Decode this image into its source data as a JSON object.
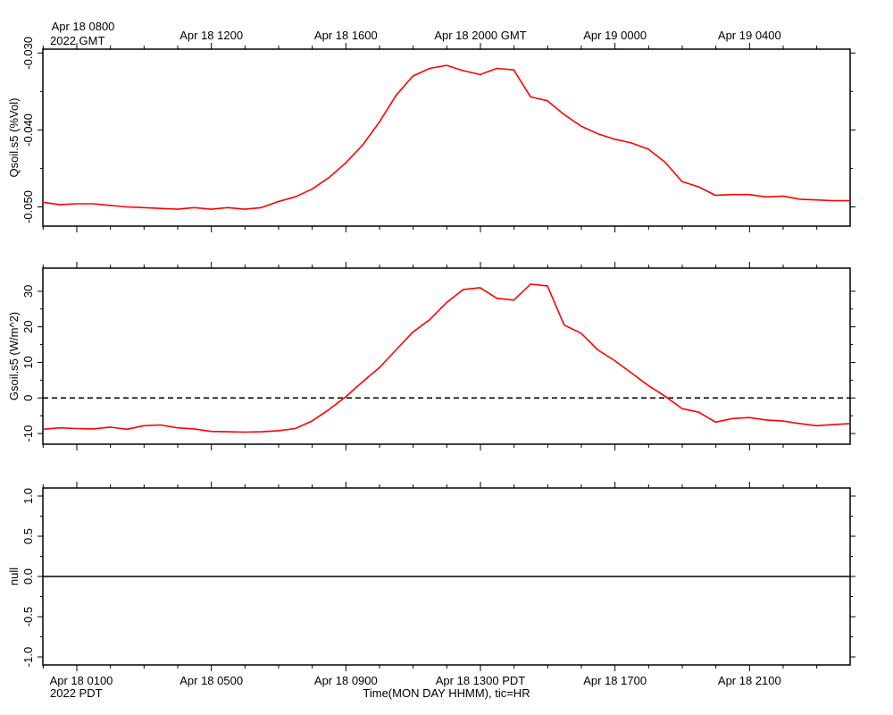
{
  "colors": {
    "series": "#ff0000",
    "axis": "#000000",
    "zero_line": "#000000"
  },
  "time_axis": {
    "top_ticks": [
      "Apr 18 0800",
      "Apr 18 1200",
      "Apr 18 1600",
      "Apr 18 2000 GMT",
      "Apr 19 0000",
      "Apr 19 0400"
    ],
    "top_year": "2022 GMT",
    "bottom_ticks": [
      "Apr 18 0100",
      "Apr 18 0500",
      "Apr 18 0900",
      "Apr 18 1300 PDT",
      "Apr 18 1700",
      "Apr 18 2100"
    ],
    "bottom_year": "2022 PDT",
    "xlabel": "Time(MON DAY HHMM), tic=HR"
  },
  "chart_data": [
    {
      "type": "line",
      "ylabel": "Qsoil.s5 (%Vol)",
      "ylim": [
        -0.0525,
        -0.0295
      ],
      "yticks": [
        "-0.030",
        "-0.040",
        "-0.050"
      ],
      "ytick_values": [
        -0.03,
        -0.04,
        -0.05
      ],
      "xlim_hours_pdt": [
        0,
        24
      ],
      "series": [
        {
          "x": [
            0,
            0.5,
            1,
            1.5,
            2,
            2.5,
            3,
            3.5,
            4,
            4.5,
            5,
            5.5,
            6,
            6.5,
            7,
            7.5,
            8,
            8.5,
            9,
            9.5,
            10,
            10.5,
            11,
            11.5,
            12,
            12.5,
            13,
            13.5,
            14,
            14.5,
            15,
            15.5,
            16,
            16.5,
            17,
            17.5,
            18,
            18.5,
            19,
            19.5,
            20,
            20.5,
            21,
            21.5,
            22,
            22.5,
            23,
            23.5,
            24
          ],
          "values": [
            -0.0494,
            -0.0497,
            -0.0496,
            -0.0496,
            -0.0498,
            -0.05,
            -0.0501,
            -0.0502,
            -0.0503,
            -0.0501,
            -0.0503,
            -0.0501,
            -0.0503,
            -0.0501,
            -0.0493,
            -0.0487,
            -0.0477,
            -0.0462,
            -0.0443,
            -0.042,
            -0.039,
            -0.0355,
            -0.033,
            -0.032,
            -0.0316,
            -0.0323,
            -0.0328,
            -0.032,
            -0.0322,
            -0.0357,
            -0.0362,
            -0.038,
            -0.0395,
            -0.0405,
            -0.0412,
            -0.0417,
            -0.0425,
            -0.0442,
            -0.0467,
            -0.0474,
            -0.0485,
            -0.0484,
            -0.0484,
            -0.0487,
            -0.0486,
            -0.049,
            -0.0491,
            -0.0492,
            -0.0492
          ]
        }
      ]
    },
    {
      "type": "line",
      "ylabel": "Gsoil.s5 (W/m^2)",
      "ylim": [
        -13,
        36.5
      ],
      "yticks": [
        "30",
        "20",
        "10",
        "0",
        "-10"
      ],
      "ytick_values": [
        30,
        20,
        10,
        0,
        -10
      ],
      "reference_line": 0,
      "xlim_hours_pdt": [
        0,
        24
      ],
      "series": [
        {
          "x": [
            0,
            0.5,
            1,
            1.5,
            2,
            2.5,
            3,
            3.5,
            4,
            4.5,
            5,
            5.5,
            6,
            6.5,
            7,
            7.5,
            8,
            8.5,
            9,
            9.5,
            10,
            10.5,
            11,
            11.5,
            12,
            12.5,
            13,
            13.5,
            14,
            14.5,
            15,
            15.5,
            16,
            16.5,
            17,
            17.5,
            18,
            18.5,
            19,
            19.5,
            20,
            20.5,
            21,
            21.5,
            22,
            22.5,
            23,
            23.5,
            24
          ],
          "values": [
            -8.8,
            -8.4,
            -8.6,
            -8.7,
            -8.2,
            -8.8,
            -7.8,
            -7.6,
            -8.4,
            -8.7,
            -9.4,
            -9.5,
            -9.6,
            -9.5,
            -9.2,
            -8.6,
            -6.5,
            -3.3,
            0.3,
            4.5,
            8.5,
            13.5,
            18.5,
            22.0,
            26.8,
            30.5,
            31.0,
            28.0,
            27.5,
            32.0,
            31.5,
            20.5,
            18.2,
            13.5,
            10.5,
            7.0,
            3.5,
            0.5,
            -3.0,
            -4.0,
            -6.8,
            -5.8,
            -5.5,
            -6.2,
            -6.5,
            -7.2,
            -7.8,
            -7.5,
            -7.2
          ]
        }
      ]
    },
    {
      "type": "line",
      "ylabel": "null",
      "ylim": [
        -1.1,
        1.1
      ],
      "yticks": [
        "1.0",
        "0.5",
        "0.0",
        "-0.5",
        "-1.0"
      ],
      "ytick_values": [
        1.0,
        0.5,
        0.0,
        -0.5,
        -1.0
      ],
      "xlim_hours_pdt": [
        0,
        24
      ],
      "series": [
        {
          "x": [
            0,
            24
          ],
          "values": [
            0,
            0
          ]
        }
      ]
    }
  ]
}
